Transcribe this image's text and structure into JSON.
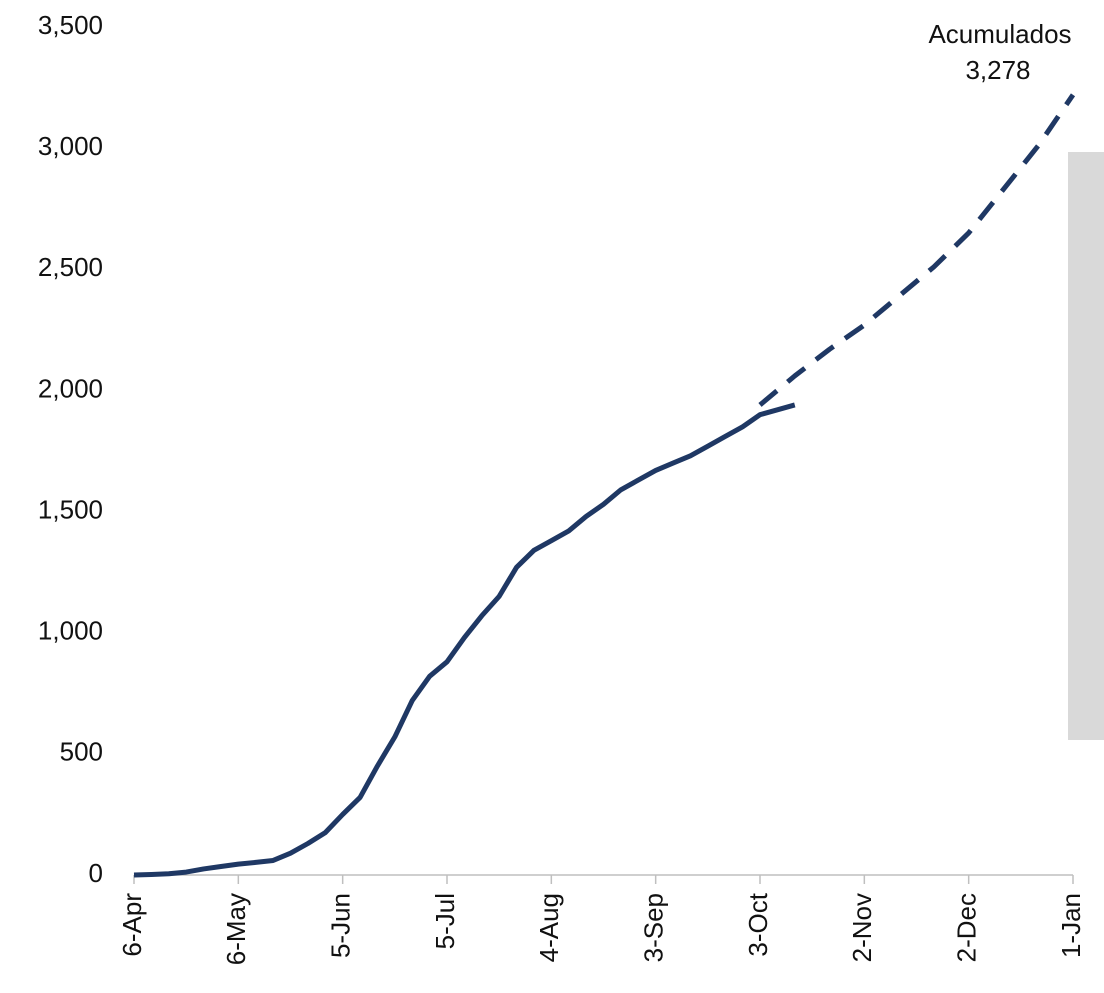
{
  "chart_data": {
    "type": "line",
    "annotation": [
      "Acumulados",
      "3,278"
    ],
    "x": [
      0,
      5,
      10,
      15,
      20,
      25,
      30,
      35,
      40,
      45,
      50,
      55,
      60,
      65,
      70,
      75,
      80,
      85,
      90,
      95,
      100,
      105,
      110,
      115,
      120,
      125,
      130,
      135,
      140,
      145,
      150,
      155,
      160,
      165,
      170,
      175,
      180,
      190,
      200,
      210,
      220,
      230,
      240,
      250,
      260,
      270
    ],
    "series": [
      {
        "color": "#1f3864",
        "style": "solid",
        "values": [
          0,
          2,
          5,
          12,
          25,
          35,
          45,
          52,
          60,
          90,
          130,
          175,
          250,
          320,
          450,
          570,
          720,
          820,
          880,
          980,
          1070,
          1150,
          1270,
          1340,
          1380,
          1420,
          1480,
          1530,
          1590,
          1630,
          1670,
          1700,
          1730,
          1770,
          1810,
          1850,
          1900,
          1940,
          null,
          null,
          null,
          null,
          null,
          null,
          null,
          null
        ]
      },
      {
        "color": "#1f3864",
        "style": "dashed",
        "values": [
          null,
          null,
          null,
          null,
          null,
          null,
          null,
          null,
          null,
          null,
          null,
          null,
          null,
          null,
          null,
          null,
          null,
          null,
          null,
          null,
          null,
          null,
          null,
          null,
          null,
          null,
          null,
          null,
          null,
          null,
          null,
          null,
          null,
          null,
          null,
          null,
          1940,
          2060,
          2170,
          2270,
          2390,
          2510,
          2650,
          2830,
          3010,
          3220
        ]
      }
    ],
    "xlim": [
      0,
      270
    ],
    "xticks": [
      {
        "value": 0,
        "label": "6-Apr"
      },
      {
        "value": 30,
        "label": "6-May"
      },
      {
        "value": 60,
        "label": "5-Jun"
      },
      {
        "value": 90,
        "label": "5-Jul"
      },
      {
        "value": 120,
        "label": "4-Aug"
      },
      {
        "value": 150,
        "label": "3-Sep"
      },
      {
        "value": 180,
        "label": "3-Oct"
      },
      {
        "value": 210,
        "label": "2-Nov"
      },
      {
        "value": 240,
        "label": "2-Dec"
      },
      {
        "value": 270,
        "label": "1-Jan"
      }
    ],
    "ylim": [
      0,
      3500
    ],
    "yticks": [
      0,
      {
        "value": 500,
        "label": "500"
      },
      {
        "value": 1000,
        "label": "1,000"
      },
      {
        "value": 1500,
        "label": "1,500"
      },
      {
        "value": 2000,
        "label": "2,000"
      },
      {
        "value": 2500,
        "label": "2,500"
      },
      {
        "value": 3000,
        "label": "3,000"
      },
      {
        "value": 3500,
        "label": "3,500"
      }
    ]
  }
}
